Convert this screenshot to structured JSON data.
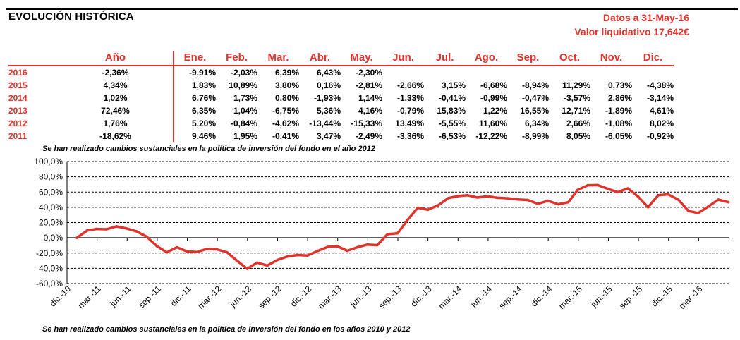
{
  "header": {
    "title": "EVOLUCIÓN HISTÓRICA",
    "date_line": "Datos a 31-May-16",
    "nav_line": "Valor liquidativo 17,642€"
  },
  "table": {
    "year_header": "Año",
    "months": [
      "Ene.",
      "Feb.",
      "Mar.",
      "Abr.",
      "May.",
      "Jun.",
      "Jul.",
      "Ago.",
      "Sep.",
      "Oct.",
      "Nov.",
      "Dic."
    ],
    "rows": [
      {
        "year": "2016",
        "annual": "-2,36%",
        "months": [
          "-9,91%",
          "-2,03%",
          "6,39%",
          "6,43%",
          "-2,30%",
          "",
          "",
          "",
          "",
          "",
          "",
          ""
        ]
      },
      {
        "year": "2015",
        "annual": "4,34%",
        "months": [
          "1,83%",
          "10,89%",
          "3,80%",
          "0,16%",
          "-2,81%",
          "-2,66%",
          "3,15%",
          "-6,68%",
          "-8,94%",
          "11,29%",
          "0,73%",
          "-4,38%"
        ]
      },
      {
        "year": "2014",
        "annual": "1,02%",
        "months": [
          "6,76%",
          "1,73%",
          "0,80%",
          "-1,93%",
          "1,14%",
          "-1,33%",
          "-0,41%",
          "-0,99%",
          "-0,47%",
          "-3,57%",
          "2,86%",
          "-3,14%"
        ]
      },
      {
        "year": "2013",
        "annual": "72,46%",
        "months": [
          "6,35%",
          "1,04%",
          "-6,75%",
          "5,36%",
          "4,16%",
          "-0,79%",
          "15,83%",
          "1,22%",
          "16,55%",
          "12,71%",
          "-1,89%",
          "4,61%"
        ]
      },
      {
        "year": "2012",
        "annual": "1,76%",
        "months": [
          "5,20%",
          "-0,84%",
          "-4,62%",
          "-13,44%",
          "-15,33%",
          "13,49%",
          "-5,55%",
          "11,60%",
          "6,34%",
          "2,66%",
          "-1,08%",
          "8,02%"
        ]
      },
      {
        "year": "2011",
        "annual": "-18,62%",
        "months": [
          "9,46%",
          "1,95%",
          "-0,41%",
          "3,47%",
          "-2,49%",
          "-3,36%",
          "-6,53%",
          "-12,22%",
          "-8,99%",
          "8,05%",
          "-6,05%",
          "-0,92%"
        ]
      }
    ]
  },
  "notes": {
    "note_2012": "Se han realizado cambios sustanciales en la política de inversión del fondo en el año 2012",
    "note_2010_2012": "Se han realizado cambios sustanciales en la política de inversión del fondo en los años 2010 y 2012"
  },
  "colors": {
    "accent": "#e0332b",
    "line": "#e0332b",
    "axis": "#000000",
    "grid": "#000000"
  },
  "chart_data": {
    "type": "line",
    "title": "",
    "xlabel": "",
    "ylabel": "",
    "ylim": [
      -60,
      100
    ],
    "y_ticks": [
      "-60,0%",
      "-40,0%",
      "-20,0%",
      "0,0%",
      "20,0%",
      "40,0%",
      "60,0%",
      "80,0%",
      "100,0%"
    ],
    "y_tick_values": [
      -60,
      -40,
      -20,
      0,
      20,
      40,
      60,
      80,
      100
    ],
    "x_tick_labels": [
      "dic.-10",
      "mar.-11",
      "jun.-11",
      "sep.-11",
      "dic.-11",
      "mar.-12",
      "jun.-12",
      "sep.-12",
      "dic.-12",
      "mar.-13",
      "jun.-13",
      "sep.-13",
      "dic.-13",
      "mar.-14",
      "jun.-14",
      "sep.-14",
      "dic.-14",
      "mar.-15",
      "jun.-15",
      "sep.-15",
      "dic.-15",
      "mar.-16"
    ],
    "grid": true,
    "legend": "none",
    "series": [
      {
        "x": [
          "2010-12-31",
          "2011-01-31",
          "2011-02-28",
          "2011-03-31",
          "2011-04-30",
          "2011-05-31",
          "2011-06-30",
          "2011-07-31",
          "2011-08-31",
          "2011-09-30",
          "2011-10-31",
          "2011-11-30",
          "2011-12-31",
          "2012-01-31",
          "2012-02-29",
          "2012-03-31",
          "2012-04-30",
          "2012-05-31",
          "2012-06-30",
          "2012-07-31",
          "2012-08-31",
          "2012-09-30",
          "2012-10-31",
          "2012-11-30",
          "2012-12-31",
          "2013-01-31",
          "2013-02-28",
          "2013-03-31",
          "2013-04-30",
          "2013-05-31",
          "2013-06-30",
          "2013-07-31",
          "2013-08-31",
          "2013-09-30",
          "2013-10-31",
          "2013-11-30",
          "2013-12-31",
          "2014-01-31",
          "2014-02-28",
          "2014-03-31",
          "2014-04-30",
          "2014-05-31",
          "2014-06-30",
          "2014-07-31",
          "2014-08-31",
          "2014-09-30",
          "2014-10-31",
          "2014-11-30",
          "2014-12-31",
          "2015-01-31",
          "2015-02-28",
          "2015-03-31",
          "2015-04-30",
          "2015-05-31",
          "2015-06-30",
          "2015-07-31",
          "2015-08-31",
          "2015-09-30",
          "2015-10-31",
          "2015-11-30",
          "2015-12-31",
          "2016-01-31",
          "2016-02-29",
          "2016-03-31",
          "2016-04-30",
          "2016-05-31"
        ],
        "values": [
          0.0,
          9.5,
          11.6,
          11.2,
          15.0,
          12.2,
          8.5,
          1.4,
          -11.0,
          -19.0,
          -12.5,
          -17.8,
          -18.6,
          -14.4,
          -15.1,
          -19.0,
          -29.9,
          -40.6,
          -32.5,
          -36.3,
          -29.0,
          -24.5,
          -22.5,
          -23.3,
          -17.2,
          -11.9,
          -11.0,
          -17.0,
          -12.5,
          -8.9,
          -9.6,
          4.7,
          6.0,
          23.6,
          39.4,
          36.8,
          42.4,
          51.9,
          54.6,
          55.8,
          52.8,
          54.5,
          52.5,
          51.8,
          50.3,
          49.6,
          44.5,
          48.6,
          44.0,
          46.6,
          62.6,
          68.8,
          69.1,
          64.3,
          59.9,
          64.9,
          53.9,
          40.1,
          55.9,
          57.0,
          50.1,
          35.2,
          32.5,
          41.0,
          50.1,
          46.7
        ]
      }
    ]
  }
}
